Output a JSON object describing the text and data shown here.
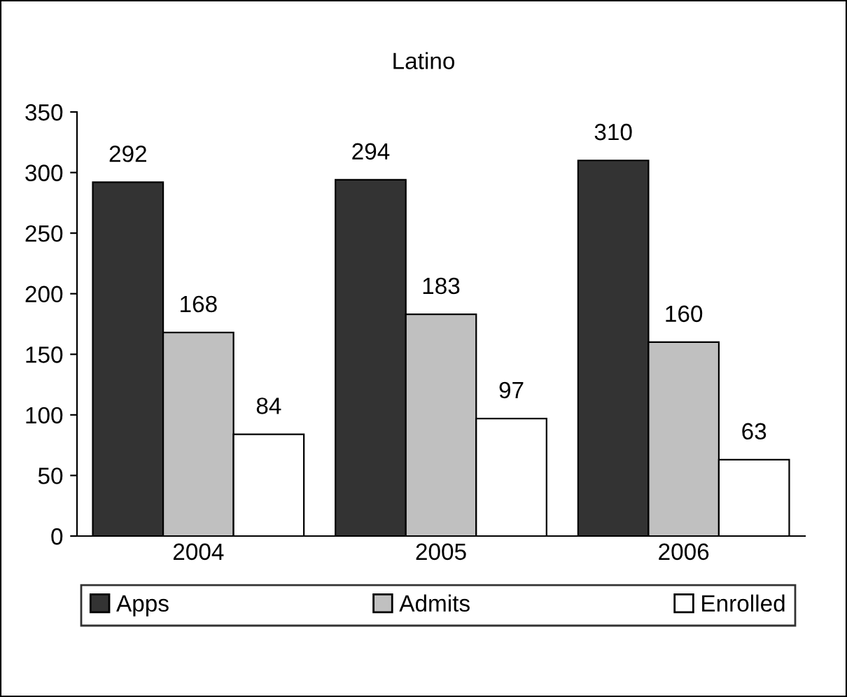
{
  "chart_data": {
    "type": "bar",
    "title": "Latino",
    "categories": [
      "2004",
      "2005",
      "2006"
    ],
    "series": [
      {
        "name": "Apps",
        "color": "#333333",
        "values": [
          292,
          294,
          310
        ]
      },
      {
        "name": "Admits",
        "color": "#c0c0c0",
        "values": [
          168,
          183,
          160
        ]
      },
      {
        "name": "Enrolled",
        "color": "#ffffff",
        "values": [
          84,
          97,
          63
        ]
      }
    ],
    "ylim": [
      0,
      350
    ],
    "yticks": [
      0,
      50,
      100,
      150,
      200,
      250,
      300,
      350
    ],
    "data_labels": true,
    "grid": false,
    "legend": "bottom"
  }
}
